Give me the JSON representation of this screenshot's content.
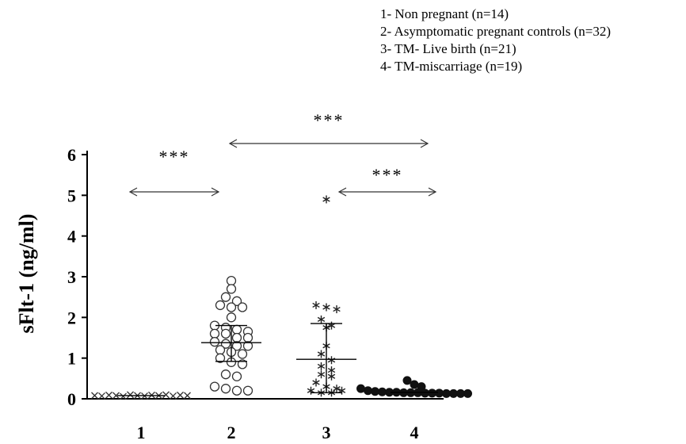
{
  "chart_data": {
    "type": "scatter",
    "ylabel": "sFlt-1 (ng/ml)",
    "ylim": [
      0,
      6
    ],
    "yticks": [
      "0",
      "1",
      "2",
      "3",
      "4",
      "5",
      "6"
    ],
    "categories": [
      "1",
      "2",
      "3",
      "4"
    ],
    "legend": [
      "1- Non pregnant (n=14)",
      "2- Asymptomatic pregnant controls (n=32)",
      "3- TM- Live birth (n=21)",
      "4- TM-miscarriage (n=19)"
    ],
    "series": [
      {
        "marker": "x",
        "values": [
          0.08,
          0.07,
          0.09,
          0.08,
          0.06,
          0.1,
          0.08,
          0.07,
          0.09,
          0.08,
          0.1,
          0.07,
          0.09,
          0.08
        ],
        "mean": 0.08
      },
      {
        "marker": "circle-open",
        "values": [
          2.9,
          2.7,
          2.5,
          2.4,
          2.3,
          2.25,
          2.25,
          2.0,
          1.8,
          1.75,
          1.7,
          1.65,
          1.6,
          1.6,
          1.5,
          1.5,
          1.4,
          1.35,
          1.3,
          1.3,
          1.2,
          1.15,
          1.1,
          1.0,
          0.9,
          0.85,
          0.6,
          0.55,
          0.3,
          0.25,
          0.2,
          0.2
        ],
        "mean": 1.38,
        "sd_lower": 0.92,
        "sd_upper": 1.8
      },
      {
        "marker": "asterisk",
        "values": [
          4.9,
          2.3,
          2.25,
          2.2,
          1.95,
          1.8,
          1.75,
          1.3,
          1.1,
          0.95,
          0.8,
          0.7,
          0.6,
          0.55,
          0.4,
          0.3,
          0.25,
          0.2,
          0.15,
          0.15,
          0.2
        ],
        "mean": 0.97,
        "sd_lower": 0.15,
        "sd_upper": 1.85
      },
      {
        "marker": "circle-filled",
        "values": [
          0.45,
          0.35,
          0.3,
          0.25,
          0.2,
          0.18,
          0.17,
          0.16,
          0.16,
          0.15,
          0.15,
          0.15,
          0.14,
          0.14,
          0.14,
          0.13,
          0.13,
          0.13,
          0.13
        ],
        "mean": 0.16
      }
    ],
    "comparisons": [
      {
        "from": "1",
        "to": "2",
        "label": "***"
      },
      {
        "from": "2",
        "to": "4",
        "label": "***"
      },
      {
        "from": "3",
        "to": "4",
        "label": "***"
      }
    ]
  }
}
